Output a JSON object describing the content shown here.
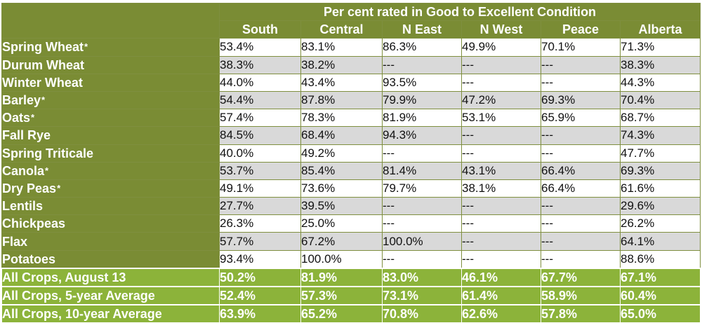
{
  "table": {
    "title": "Per cent rated in Good to Excellent Condition",
    "columns": [
      "South",
      "Central",
      "N East",
      "N West",
      "Peace",
      "Alberta"
    ],
    "rows": [
      {
        "crop": "Spring Wheat",
        "mark": "*",
        "values": [
          "53.4%",
          "83.1%",
          "86.3%",
          "49.9%",
          "70.1%",
          "71.3%"
        ]
      },
      {
        "crop": "Durum Wheat",
        "mark": "",
        "values": [
          "38.3%",
          "38.2%",
          "---",
          "---",
          "---",
          "38.3%"
        ]
      },
      {
        "crop": "Winter Wheat",
        "mark": "",
        "values": [
          "44.0%",
          "43.4%",
          "93.5%",
          "---",
          "---",
          "44.3%"
        ]
      },
      {
        "crop": "Barley",
        "mark": "*",
        "values": [
          "54.4%",
          "87.8%",
          "79.9%",
          "47.2%",
          "69.3%",
          "70.4%"
        ]
      },
      {
        "crop": "Oats",
        "mark": "*",
        "values": [
          "57.4%",
          "78.3%",
          "81.9%",
          "53.1%",
          "65.9%",
          "68.7%"
        ]
      },
      {
        "crop": "Fall Rye",
        "mark": "",
        "values": [
          "84.5%",
          "68.4%",
          "94.3%",
          "---",
          "---",
          "74.3%"
        ]
      },
      {
        "crop": "Spring Triticale",
        "mark": "",
        "values": [
          "40.0%",
          "49.2%",
          "---",
          "---",
          "---",
          "47.7%"
        ]
      },
      {
        "crop": "Canola",
        "mark": "*",
        "values": [
          "53.7%",
          "85.4%",
          "81.4%",
          "43.1%",
          "66.4%",
          "69.3%"
        ]
      },
      {
        "crop": "Dry Peas",
        "mark": "*",
        "values": [
          "49.1%",
          "73.6%",
          "79.7%",
          "38.1%",
          "66.4%",
          "61.6%"
        ]
      },
      {
        "crop": "Lentils",
        "mark": "",
        "values": [
          "27.7%",
          "39.5%",
          "---",
          "---",
          "---",
          "29.6%"
        ]
      },
      {
        "crop": "Chickpeas",
        "mark": "",
        "values": [
          "26.3%",
          "25.0%",
          "---",
          "---",
          "---",
          "26.2%"
        ]
      },
      {
        "crop": "Flax",
        "mark": "",
        "values": [
          "57.7%",
          "67.2%",
          "100.0%",
          "---",
          "---",
          "64.1%"
        ]
      },
      {
        "crop": "Potatoes",
        "mark": "",
        "values": [
          "93.4%",
          "100.0%",
          "---",
          "---",
          "---",
          "88.6%"
        ]
      }
    ],
    "summary_rows": [
      {
        "label": "All Crops, August 13",
        "values": [
          "50.2%",
          "81.9%",
          "83.0%",
          "46.1%",
          "67.7%",
          "67.1%"
        ]
      },
      {
        "label": "All Crops, 5-year Average",
        "values": [
          "52.4%",
          "57.3%",
          "73.1%",
          "61.4%",
          "58.9%",
          "60.4%"
        ]
      },
      {
        "label": "All Crops, 10-year Average",
        "values": [
          "63.9%",
          "65.2%",
          "70.8%",
          "62.6%",
          "57.8%",
          "65.0%"
        ]
      }
    ]
  },
  "colors": {
    "header_olive": "#7a8c34",
    "summary_green": "#8cb33a",
    "row_gray": "#d9d9d9"
  }
}
